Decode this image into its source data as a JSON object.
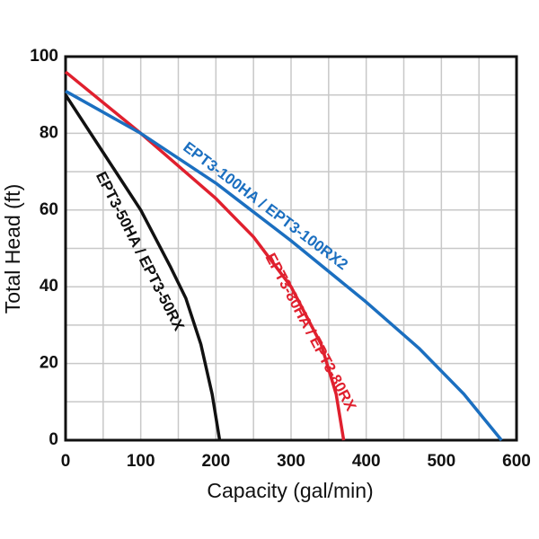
{
  "chart_data": {
    "type": "line",
    "x_label": "Capacity (gal/min)",
    "y_label": "Total Head (ft)",
    "xlim": [
      0,
      600
    ],
    "ylim": [
      0,
      100
    ],
    "xticks": [
      0,
      100,
      200,
      300,
      400,
      500,
      600
    ],
    "yticks": [
      0,
      20,
      40,
      60,
      80,
      100
    ],
    "x_gridlines": [
      50,
      150,
      250,
      350,
      450,
      550
    ],
    "y_gridlines": [
      10,
      30,
      50,
      70,
      90
    ],
    "grid": true,
    "series": [
      {
        "name": "EPT3-50HA / EPT3-50RX",
        "color": "#111111",
        "x": [
          0,
          50,
          100,
          140,
          160,
          180,
          195,
          205
        ],
        "values": [
          90,
          75,
          60,
          45,
          37,
          25,
          12,
          0
        ]
      },
      {
        "name": "EPT3-80HA / EPT3-80RX",
        "color": "#e0202e",
        "x": [
          0,
          100,
          200,
          250,
          300,
          340,
          360,
          370
        ],
        "values": [
          96,
          80,
          63,
          53,
          40,
          25,
          12,
          0
        ]
      },
      {
        "name": "EPT3-100HA / EPT3-100RX2",
        "color": "#1b6fc0",
        "x": [
          0,
          100,
          200,
          300,
          400,
          470,
          530,
          580
        ],
        "values": [
          91,
          80,
          67,
          52,
          36,
          24,
          12,
          0
        ]
      }
    ]
  }
}
